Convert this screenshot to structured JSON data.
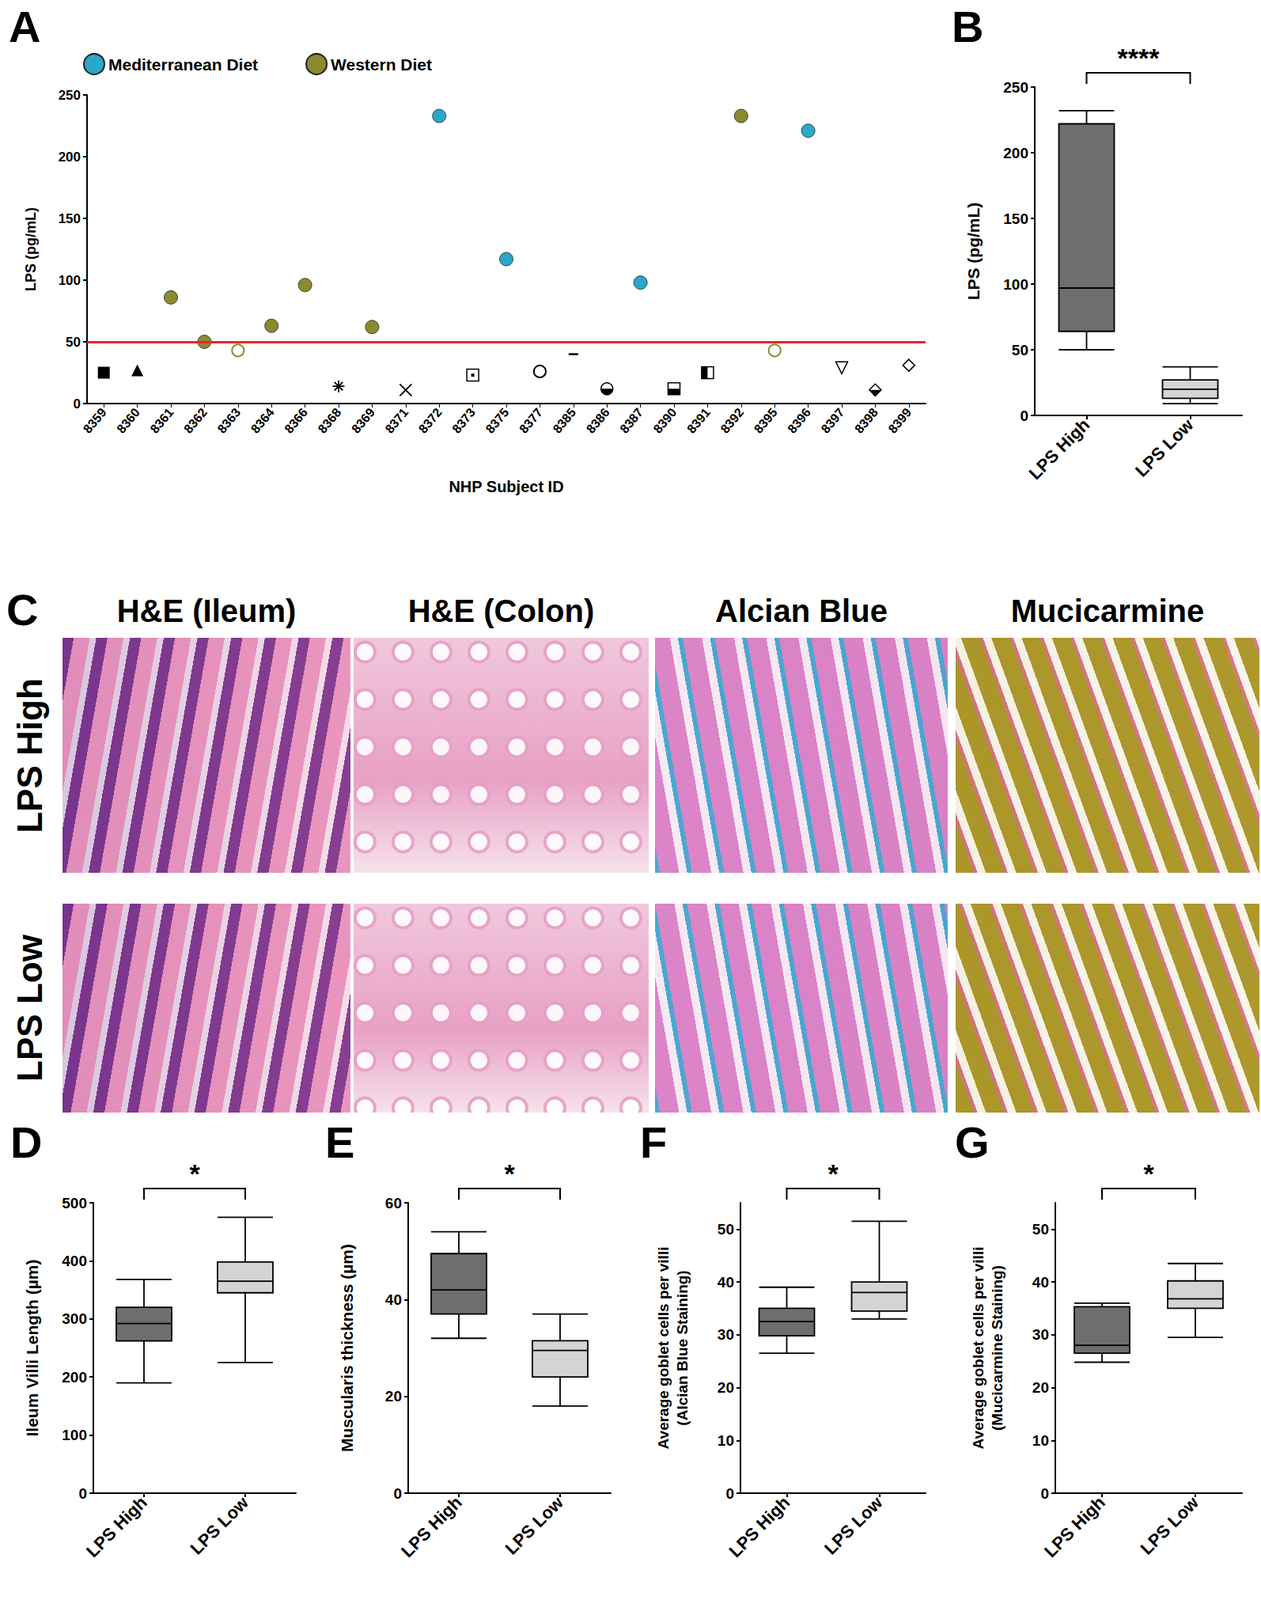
{
  "chart_data": [
    {
      "type": "scatter",
      "title": "A",
      "xlabel": "NHP Subject ID",
      "ylabel": "LPS (pg/mL)",
      "categories": [
        "8359",
        "8360",
        "8361",
        "8362",
        "8363",
        "8364",
        "8366",
        "8368",
        "8369",
        "8371",
        "8372",
        "8373",
        "8375",
        "8377",
        "8385",
        "8386",
        "8387",
        "8390",
        "8391",
        "8392",
        "8395",
        "8396",
        "8397",
        "8398",
        "8399"
      ],
      "ylim": [
        0,
        250
      ],
      "yticks": [
        0,
        50,
        100,
        150,
        200,
        250
      ],
      "grid": false,
      "legend": "top-left",
      "reference_line": 50,
      "series": [
        {
          "name": "Mediterranean Diet",
          "color": "#2aa7c9",
          "marker": "circle",
          "x": [
            "8372",
            "8375",
            "8387",
            "8396"
          ],
          "values": [
            233,
            117,
            98,
            221
          ]
        },
        {
          "name": "Western Diet",
          "color": "#8c8a2e",
          "marker": "circle",
          "x": [
            "8361",
            "8362",
            "8364",
            "8366",
            "8369",
            "8392"
          ],
          "values": [
            86,
            50,
            63,
            96,
            62,
            233
          ]
        },
        {
          "color": "#8c8a2e",
          "marker": "open_circle",
          "x": [
            "8363",
            "8395"
          ],
          "values": [
            43,
            43
          ]
        },
        {
          "color": "#000000",
          "marker": "square",
          "x": [
            "8359"
          ],
          "values": [
            25
          ]
        },
        {
          "color": "#000000",
          "marker": "triangle",
          "x": [
            "8360"
          ],
          "values": [
            27
          ]
        },
        {
          "color": "#000000",
          "marker": "asterisk",
          "x": [
            "8368"
          ],
          "values": [
            14
          ]
        },
        {
          "color": "#000000",
          "marker": "x",
          "x": [
            "8371"
          ],
          "values": [
            11
          ]
        },
        {
          "color": "#000000",
          "marker": "square_dot",
          "x": [
            "8373"
          ],
          "values": [
            23
          ]
        },
        {
          "color": "#000000",
          "marker": "open_circle",
          "x": [
            "8377"
          ],
          "values": [
            26
          ]
        },
        {
          "color": "#000000",
          "marker": "dash",
          "x": [
            "8385"
          ],
          "values": [
            40
          ]
        },
        {
          "color": "#000000",
          "marker": "half_circle",
          "x": [
            "8386"
          ],
          "values": [
            12
          ]
        },
        {
          "color": "#000000",
          "marker": "half_square",
          "x": [
            "8390"
          ],
          "values": [
            12
          ]
        },
        {
          "color": "#000000",
          "marker": "half_square_left",
          "x": [
            "8391"
          ],
          "values": [
            25
          ]
        },
        {
          "color": "#000000",
          "marker": "triangle_down_open",
          "x": [
            "8397"
          ],
          "values": [
            29
          ]
        },
        {
          "color": "#000000",
          "marker": "half_diamond",
          "x": [
            "8398"
          ],
          "values": [
            11
          ]
        },
        {
          "color": "#000000",
          "marker": "diamond_open",
          "x": [
            "8399"
          ],
          "values": [
            31
          ]
        }
      ]
    },
    {
      "type": "boxplot",
      "title": "B",
      "ylabel": "LPS (pg/mL)",
      "categories": [
        "LPS High",
        "LPS Low"
      ],
      "values": [
        [
          50,
          64,
          97,
          222,
          232
        ],
        [
          9,
          13,
          20,
          27,
          37
        ]
      ],
      "colors": [
        "#6e6e6e",
        "#d4d4d4"
      ],
      "ylim": [
        0,
        250
      ],
      "yticks": [
        0,
        50,
        100,
        150,
        200,
        250
      ],
      "grid": false,
      "annotation": "****"
    },
    {
      "type": "boxplot",
      "title": "D",
      "ylabel": "Ileum Villi Length (µm)",
      "categories": [
        "LPS High",
        "LPS Low"
      ],
      "values": [
        [
          190,
          262,
          292,
          320,
          368
        ],
        [
          225,
          345,
          365,
          398,
          475
        ]
      ],
      "colors": [
        "#6e6e6e",
        "#d4d4d4"
      ],
      "ylim": [
        0,
        500
      ],
      "yticks": [
        0,
        100,
        200,
        300,
        400,
        500
      ],
      "grid": false,
      "annotation": "*"
    },
    {
      "type": "boxplot",
      "title": "E",
      "ylabel": "Muscularis thickness (µm)",
      "categories": [
        "LPS High",
        "LPS Low"
      ],
      "values": [
        [
          32,
          37,
          42,
          49.5,
          54
        ],
        [
          18,
          24,
          29.5,
          31.5,
          37
        ]
      ],
      "colors": [
        "#6e6e6e",
        "#d4d4d4"
      ],
      "ylim": [
        0,
        60
      ],
      "yticks": [
        0,
        20,
        40,
        60
      ],
      "grid": false,
      "annotation": "*"
    },
    {
      "type": "boxplot",
      "title": "F",
      "ylabel": "Average goblet cells per villi\n(Alcian Blue Staining)",
      "categories": [
        "LPS High",
        "LPS Low"
      ],
      "values": [
        [
          26.5,
          29.8,
          32.5,
          35,
          39
        ],
        [
          33,
          34.5,
          38,
          40,
          51.5
        ]
      ],
      "colors": [
        "#6e6e6e",
        "#d4d4d4"
      ],
      "ylim": [
        0,
        55
      ],
      "yticks": [
        0,
        10,
        20,
        30,
        40,
        50
      ],
      "grid": false,
      "annotation": "*"
    },
    {
      "type": "boxplot",
      "title": "G",
      "ylabel": "Average goblet cells per villi\n(Mucicarmine Staining)",
      "categories": [
        "LPS High",
        "LPS Low"
      ],
      "values": [
        [
          24.8,
          26.5,
          28,
          35.3,
          36
        ],
        [
          29.5,
          35,
          36.8,
          40.2,
          43.5
        ]
      ],
      "colors": [
        "#6e6e6e",
        "#d4d4d4"
      ],
      "ylim": [
        0,
        55
      ],
      "yticks": [
        0,
        10,
        20,
        30,
        40,
        50
      ],
      "grid": false,
      "annotation": "*"
    }
  ],
  "panel_c": {
    "title": "C",
    "columns": [
      "H&E (Ileum)",
      "H&E (Colon)",
      "Alcian Blue",
      "Mucicarmine"
    ],
    "rows": [
      "LPS High",
      "LPS Low"
    ]
  }
}
